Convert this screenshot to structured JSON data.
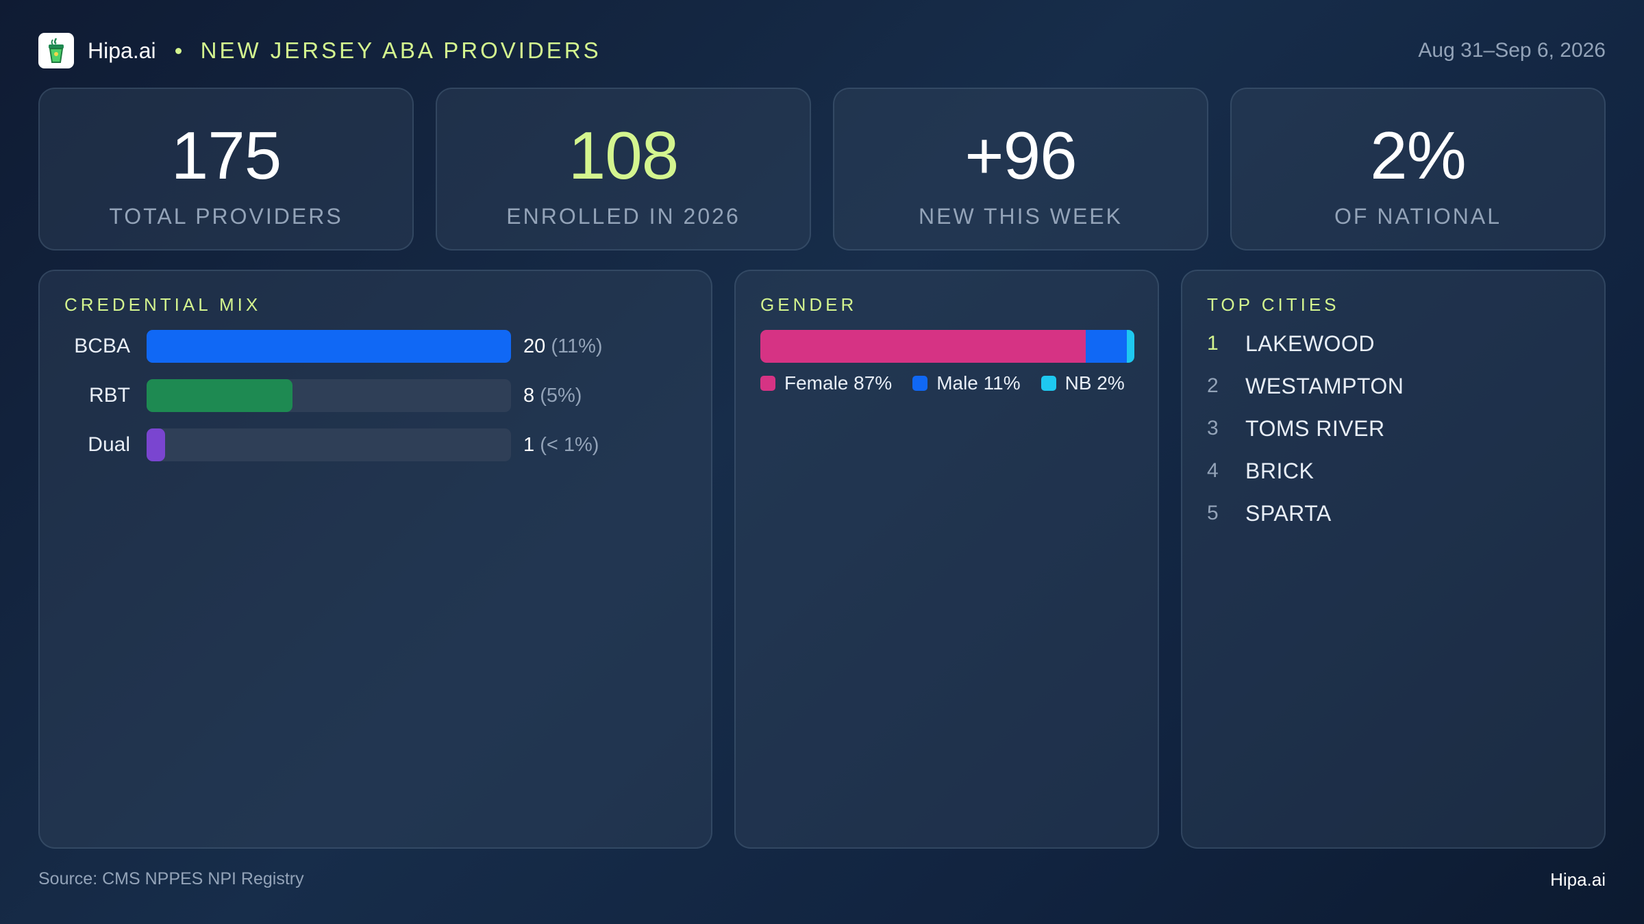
{
  "header": {
    "brand": "Hipa.ai",
    "title": "NEW JERSEY ABA PROVIDERS",
    "date_range": "Aug 31–Sep 6, 2026",
    "logo_icon": "cup-icon",
    "accent_color": "#d4f58f"
  },
  "kpis": [
    {
      "value": "175",
      "label": "TOTAL PROVIDERS",
      "accent": false
    },
    {
      "value": "108",
      "label": "ENROLLED IN 2026",
      "accent": true
    },
    {
      "value": "+96",
      "label": "NEW THIS WEEK",
      "accent": false
    },
    {
      "value": "2%",
      "label": "OF NATIONAL",
      "accent": false
    }
  ],
  "credential_mix": {
    "title": "CREDENTIAL MIX",
    "items": [
      {
        "label": "BCBA",
        "count": "20",
        "pct": "(11%)",
        "fill_fraction": 1.0,
        "color": "#1068f5"
      },
      {
        "label": "RBT",
        "count": "8",
        "pct": "(5%)",
        "fill_fraction": 0.4,
        "color": "#1e8a52"
      },
      {
        "label": "Dual",
        "count": "1",
        "pct": "(< 1%)",
        "fill_fraction": 0.05,
        "color": "#7a45d0"
      }
    ]
  },
  "gender": {
    "title": "GENDER",
    "segments": [
      {
        "label": "Female 87%",
        "value": 87,
        "color": "#d63384"
      },
      {
        "label": "Male 11%",
        "value": 11,
        "color": "#1068f5"
      },
      {
        "label": "NB 2%",
        "value": 2,
        "color": "#1ec8f0"
      }
    ]
  },
  "top_cities": {
    "title": "TOP CITIES",
    "items": [
      {
        "rank": "1",
        "name": "LAKEWOOD"
      },
      {
        "rank": "2",
        "name": "WESTAMPTON"
      },
      {
        "rank": "3",
        "name": "TOMS RIVER"
      },
      {
        "rank": "4",
        "name": "BRICK"
      },
      {
        "rank": "5",
        "name": "SPARTA"
      }
    ]
  },
  "footer": {
    "source": "Source: CMS NPPES NPI Registry",
    "brand": "Hipa.ai"
  }
}
